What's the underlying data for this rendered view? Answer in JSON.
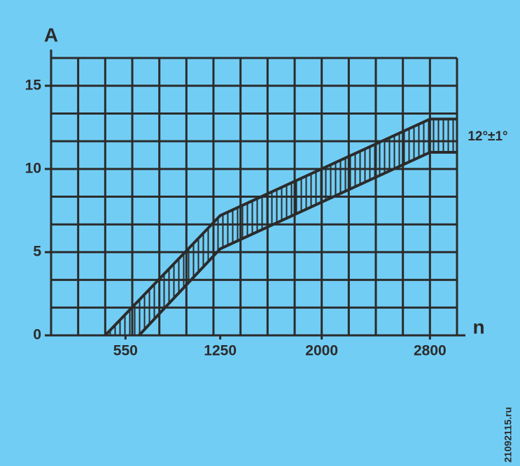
{
  "chart_data": {
    "type": "band",
    "ylabel": "A",
    "xlabel": "n",
    "xlim": [
      0,
      3000
    ],
    "ylim": [
      0,
      16.67
    ],
    "xticks": [
      550,
      1250,
      2000,
      2800
    ],
    "yticks": [
      0,
      5,
      10,
      15
    ],
    "xgrid": [
      0,
      200,
      400,
      600,
      800,
      1000,
      1200,
      1400,
      1600,
      1800,
      2000,
      2200,
      2400,
      2600,
      2800,
      3000
    ],
    "ygrid": [
      0,
      1.667,
      3.333,
      5,
      6.667,
      8.333,
      10,
      11.667,
      13.333,
      15,
      16.67
    ],
    "grid": true,
    "series": [
      {
        "color": "#2b2b2b",
        "x": [
          400,
          1250,
          2800,
          3000
        ],
        "values": [
          0,
          7.2,
          13,
          13
        ]
      },
      {
        "color": "#2b2b2b",
        "x": [
          650,
          1250,
          2800,
          3000
        ],
        "values": [
          0,
          5.2,
          11,
          11
        ]
      }
    ],
    "annotation": "12°±1°",
    "watermark": "21092115.ru"
  }
}
